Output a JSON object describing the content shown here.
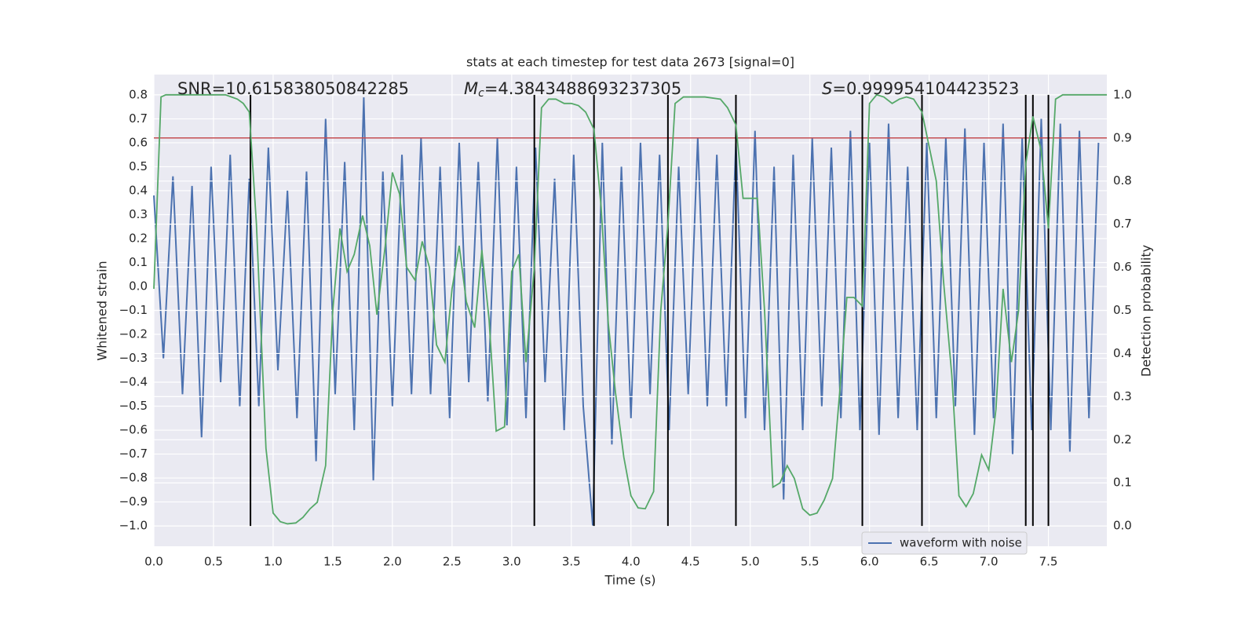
{
  "chart_data": {
    "type": "line",
    "title": "stats at each timestep for test data 2673 [signal=0]",
    "xlabel": "Time (s)",
    "ylabel": "Whitened strain",
    "y2label": "Detection probability",
    "annotations": [
      {
        "text": "SNR=10.615838050842285"
      },
      {
        "symbol": "M",
        "subscript": "c",
        "text": "=4.3843488693237305"
      },
      {
        "symbol": "S",
        "text": "=0.999954104423523"
      }
    ],
    "xlim": [
      0,
      7.99
    ],
    "ylim": [
      -1.085,
      0.885
    ],
    "y2lim": [
      -0.047,
      1.047
    ],
    "xticks": [
      {
        "value": 0,
        "label": "0.0"
      },
      0.5,
      {
        "value": 1,
        "label": "1.0"
      },
      1.5,
      {
        "value": 2,
        "label": "2.0"
      },
      2.5,
      {
        "value": 3,
        "label": "3.0"
      },
      3.5,
      {
        "value": 4,
        "label": "4.0"
      },
      4.5,
      {
        "value": 5,
        "label": "5.0"
      },
      5.5,
      {
        "value": 6,
        "label": "6.0"
      },
      6.5,
      {
        "value": 7,
        "label": "7.0"
      },
      7.5
    ],
    "yticks": [
      {
        "value": -1,
        "label": "−1.0"
      },
      {
        "value": -0.9,
        "label": "−0.9"
      },
      {
        "value": -0.8,
        "label": "−0.8"
      },
      {
        "value": -0.7,
        "label": "−0.7"
      },
      {
        "value": -0.6,
        "label": "−0.6"
      },
      {
        "value": -0.5,
        "label": "−0.5"
      },
      {
        "value": -0.4,
        "label": "−0.4"
      },
      {
        "value": -0.3,
        "label": "−0.3"
      },
      {
        "value": -0.2,
        "label": "−0.2"
      },
      {
        "value": -0.1,
        "label": "−0.1"
      },
      {
        "value": 0,
        "label": "0.0"
      },
      0.1,
      0.2,
      0.3,
      0.4,
      0.5,
      0.6,
      0.7,
      0.8
    ],
    "y2ticks": [
      {
        "value": 0,
        "label": "0.0"
      },
      0.1,
      0.2,
      0.3,
      0.4,
      0.5,
      0.6,
      0.7,
      0.8,
      0.9,
      {
        "value": 1,
        "label": "1.0"
      }
    ],
    "grid": true,
    "legend": "lower right",
    "series": [
      {
        "name": "waveform with noise",
        "color": "#4c72b0",
        "x": [
          0.0,
          0.08,
          0.16,
          0.24,
          0.32,
          0.4,
          0.48,
          0.56,
          0.64,
          0.72,
          0.8,
          0.88,
          0.96,
          1.04,
          1.12,
          1.2,
          1.28,
          1.36,
          1.44,
          1.52,
          1.6,
          1.68,
          1.76,
          1.84,
          1.92,
          2.0,
          2.08,
          2.16,
          2.24,
          2.32,
          2.4,
          2.48,
          2.56,
          2.64,
          2.72,
          2.8,
          2.88,
          2.96,
          3.04,
          3.12,
          3.2,
          3.28,
          3.36,
          3.44,
          3.52,
          3.6,
          3.68,
          3.76,
          3.84,
          3.92,
          4.0,
          4.08,
          4.16,
          4.24,
          4.32,
          4.4,
          4.48,
          4.56,
          4.64,
          4.72,
          4.8,
          4.88,
          4.96,
          5.04,
          5.12,
          5.2,
          5.28,
          5.36,
          5.44,
          5.52,
          5.6,
          5.68,
          5.76,
          5.84,
          5.92,
          6.0,
          6.08,
          6.16,
          6.24,
          6.32,
          6.4,
          6.48,
          6.56,
          6.64,
          6.72,
          6.8,
          6.88,
          6.96,
          7.04,
          7.12,
          7.2,
          7.28,
          7.36,
          7.44,
          7.52,
          7.6,
          7.68,
          7.76,
          7.84,
          7.92
        ],
        "values": [
          0.38,
          -0.3,
          0.46,
          -0.45,
          0.42,
          -0.63,
          0.5,
          -0.4,
          0.55,
          -0.5,
          0.45,
          -0.5,
          0.58,
          -0.35,
          0.4,
          -0.55,
          0.48,
          -0.73,
          0.7,
          -0.45,
          0.52,
          -0.6,
          0.79,
          -0.81,
          0.48,
          -0.5,
          0.55,
          -0.45,
          0.62,
          -0.45,
          0.5,
          -0.55,
          0.6,
          -0.4,
          0.52,
          -0.48,
          0.62,
          -0.58,
          0.5,
          -0.55,
          0.58,
          -0.4,
          0.45,
          -0.6,
          0.55,
          -0.5,
          -1.0,
          0.6,
          -0.66,
          0.5,
          -0.55,
          0.6,
          -0.45,
          0.55,
          -0.6,
          0.5,
          -0.45,
          0.62,
          -0.5,
          0.55,
          -0.5,
          0.6,
          -0.55,
          0.65,
          -0.6,
          0.5,
          -0.89,
          0.55,
          -0.6,
          0.62,
          -0.5,
          0.58,
          -0.55,
          0.65,
          -0.6,
          0.6,
          -0.62,
          0.68,
          -0.55,
          0.5,
          -0.6,
          0.6,
          -0.55,
          0.62,
          -0.5,
          0.66,
          -0.62,
          0.6,
          -0.55,
          0.68,
          -0.7,
          0.62,
          -0.6,
          0.7,
          -0.6,
          0.68,
          -0.69,
          0.65,
          -0.55,
          0.6
        ]
      },
      {
        "color": "#55a868",
        "axis": "y2",
        "x": [
          0.0,
          0.06,
          0.1,
          0.4,
          0.6,
          0.7,
          0.75,
          0.8,
          0.86,
          0.94,
          1.0,
          1.06,
          1.12,
          1.19,
          1.25,
          1.31,
          1.37,
          1.44,
          1.5,
          1.56,
          1.62,
          1.68,
          1.75,
          1.81,
          1.87,
          1.94,
          2.0,
          2.06,
          2.12,
          2.19,
          2.25,
          2.31,
          2.37,
          2.44,
          2.5,
          2.56,
          2.62,
          2.69,
          2.75,
          2.81,
          2.87,
          2.94,
          3.0,
          3.06,
          3.12,
          3.19,
          3.25,
          3.31,
          3.37,
          3.44,
          3.5,
          3.56,
          3.62,
          3.69,
          3.75,
          3.81,
          3.87,
          3.94,
          4.0,
          4.06,
          4.12,
          4.19,
          4.25,
          4.31,
          4.37,
          4.44,
          4.5,
          4.62,
          4.75,
          4.81,
          4.88,
          4.94,
          5.0,
          5.06,
          5.12,
          5.19,
          5.25,
          5.31,
          5.37,
          5.44,
          5.5,
          5.56,
          5.62,
          5.69,
          5.75,
          5.81,
          5.87,
          5.94,
          6.0,
          6.06,
          6.12,
          6.19,
          6.25,
          6.31,
          6.37,
          6.44,
          6.5,
          6.56,
          6.62,
          6.69,
          6.75,
          6.81,
          6.87,
          6.94,
          7.0,
          7.06,
          7.12,
          7.19,
          7.25,
          7.31,
          7.37,
          7.44,
          7.5,
          7.56,
          7.62,
          7.99
        ],
        "values": [
          0.55,
          0.995,
          1.0,
          1.0,
          1.0,
          0.99,
          0.98,
          0.96,
          0.7,
          0.18,
          0.03,
          0.01,
          0.005,
          0.007,
          0.02,
          0.04,
          0.055,
          0.14,
          0.5,
          0.69,
          0.59,
          0.63,
          0.72,
          0.65,
          0.49,
          0.65,
          0.82,
          0.77,
          0.6,
          0.57,
          0.66,
          0.6,
          0.42,
          0.38,
          0.55,
          0.65,
          0.52,
          0.46,
          0.64,
          0.48,
          0.22,
          0.23,
          0.59,
          0.63,
          0.38,
          0.6,
          0.97,
          0.99,
          0.99,
          0.98,
          0.98,
          0.975,
          0.96,
          0.92,
          0.74,
          0.47,
          0.31,
          0.16,
          0.07,
          0.042,
          0.04,
          0.08,
          0.5,
          0.7,
          0.98,
          0.995,
          0.995,
          0.995,
          0.99,
          0.97,
          0.93,
          0.76,
          0.76,
          0.76,
          0.5,
          0.09,
          0.1,
          0.14,
          0.11,
          0.04,
          0.025,
          0.03,
          0.06,
          0.11,
          0.31,
          0.53,
          0.53,
          0.51,
          0.98,
          1.0,
          0.995,
          0.98,
          0.99,
          0.995,
          0.99,
          0.96,
          0.88,
          0.8,
          0.57,
          0.35,
          0.07,
          0.045,
          0.075,
          0.165,
          0.13,
          0.27,
          0.55,
          0.38,
          0.5,
          0.84,
          0.95,
          0.87,
          0.69,
          0.99,
          1.0,
          1.0
        ]
      }
    ],
    "hline_y2": 0.9,
    "hline_color": "#c44e52",
    "vlines_x": [
      0.81,
      3.19,
      3.69,
      4.31,
      4.88,
      5.94,
      6.44,
      7.31,
      7.37,
      7.5
    ],
    "vlines_ymin": -1.0,
    "vlines_ymax": 0.8,
    "vlines_color": "#000000"
  }
}
